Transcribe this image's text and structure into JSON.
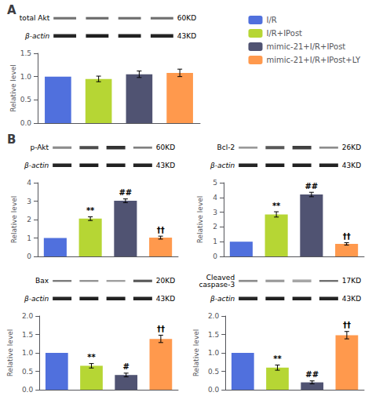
{
  "chart_data": [
    {
      "type": "bar",
      "title": "A",
      "ylabel": "Relative level",
      "categories": [
        null,
        null,
        null,
        null
      ],
      "series": [
        {
          "name": "I/R",
          "values": [
            1.0,
            null,
            null,
            null
          ],
          "errors": [
            0.0,
            null,
            null,
            null
          ]
        },
        {
          "name": "I/R+IPost",
          "values": [
            null,
            0.95,
            null,
            null
          ],
          "errors": [
            null,
            0.06,
            null,
            null
          ]
        },
        {
          "name": "mimic-21+I/R+IPost",
          "values": [
            null,
            null,
            1.05,
            null
          ],
          "errors": [
            null,
            null,
            0.07,
            null
          ]
        },
        {
          "name": "mimic-21+I/R+IPost+LY",
          "values": [
            null,
            null,
            null,
            1.08
          ],
          "errors": [
            null,
            null,
            null,
            0.08
          ]
        }
      ],
      "ylim": [
        0.0,
        1.5
      ],
      "yticks": [
        {
          "value": 0.0,
          "label": "0.0"
        },
        0.5,
        {
          "value": 1.0,
          "label": "1.0"
        },
        1.5
      ],
      "grid": false,
      "tick_labels": "y",
      "legend": "upper right",
      "blot": [
        {
          "label": "total Akt",
          "mass": "60KD",
          "darkness": [
            0.45,
            0.42,
            0.43,
            0.44
          ],
          "height": [
            0.07,
            0.07,
            0.07,
            0.07
          ]
        },
        {
          "label": "β-actin",
          "mass": "43KD",
          "darkness": [
            0.15,
            0.12,
            0.13,
            0.14
          ],
          "height": [
            0.1,
            0.1,
            0.1,
            0.1
          ]
        }
      ]
    },
    {
      "type": "bar",
      "title": "B",
      "ylabel": "Relative level",
      "categories": [
        null,
        null,
        null,
        null
      ],
      "series": [
        {
          "name": "I/R",
          "values": [
            1.0,
            null,
            null,
            null
          ],
          "errors": [
            0.0,
            null,
            null,
            null
          ]
        },
        {
          "name": "I/R+IPost",
          "values": [
            null,
            2.05,
            null,
            null
          ],
          "errors": [
            null,
            0.1,
            null,
            null
          ]
        },
        {
          "name": "mimic-21+I/R+IPost",
          "values": [
            null,
            null,
            3.02,
            null
          ],
          "errors": [
            null,
            null,
            0.1,
            null
          ]
        },
        {
          "name": "mimic-21+I/R+IPost+LY",
          "values": [
            null,
            null,
            null,
            1.02
          ],
          "errors": [
            null,
            null,
            null,
            0.08
          ]
        }
      ],
      "annotations": [
        null,
        "**",
        "##",
        "††"
      ],
      "ylim": [
        0.0,
        4.0
      ],
      "yticks": [
        0,
        1,
        2,
        3,
        4
      ],
      "grid": false,
      "tick_labels": "y",
      "blot": [
        {
          "label": "p-Akt",
          "mass": "60KD",
          "darkness": [
            0.55,
            0.3,
            0.2,
            0.5
          ],
          "height": [
            0.07,
            0.09,
            0.1,
            0.06
          ]
        },
        {
          "label": "β-actin",
          "mass": "43KD",
          "darkness": [
            0.15,
            0.12,
            0.13,
            0.14
          ],
          "height": [
            0.1,
            0.1,
            0.1,
            0.1
          ]
        }
      ]
    },
    {
      "type": "bar",
      "ylabel": "Relative level",
      "categories": [
        null,
        null,
        null,
        null
      ],
      "series": [
        {
          "name": "I/R",
          "values": [
            1.0,
            null,
            null,
            null
          ],
          "errors": [
            0.0,
            null,
            null,
            null
          ]
        },
        {
          "name": "I/R+IPost",
          "values": [
            null,
            2.85,
            null,
            null
          ],
          "errors": [
            null,
            0.18,
            null,
            null
          ]
        },
        {
          "name": "mimic-21+I/R+IPost",
          "values": [
            null,
            null,
            4.2,
            null
          ],
          "errors": [
            null,
            null,
            0.15,
            null
          ]
        },
        {
          "name": "mimic-21+I/R+IPost+LY",
          "values": [
            null,
            null,
            null,
            0.85
          ],
          "errors": [
            null,
            null,
            null,
            0.08
          ]
        }
      ],
      "annotations": [
        null,
        "**",
        "##",
        "††"
      ],
      "ylim": [
        0.0,
        5.0
      ],
      "yticks": [
        0,
        1,
        2,
        3,
        4,
        5
      ],
      "grid": false,
      "tick_labels": "y",
      "blot": [
        {
          "label": "Bcl-2",
          "mass": "26KD",
          "darkness": [
            0.6,
            0.35,
            0.25,
            0.55
          ],
          "height": [
            0.06,
            0.09,
            0.1,
            0.06
          ]
        },
        {
          "label": "β-actin",
          "mass": "43KD",
          "darkness": [
            0.15,
            0.12,
            0.13,
            0.14
          ],
          "height": [
            0.1,
            0.1,
            0.1,
            0.1
          ]
        }
      ]
    },
    {
      "type": "bar",
      "ylabel": "Relative level",
      "categories": [
        null,
        null,
        null,
        null
      ],
      "series": [
        {
          "name": "I/R",
          "values": [
            1.0,
            null,
            null,
            null
          ],
          "errors": [
            0.0,
            null,
            null,
            null
          ]
        },
        {
          "name": "I/R+IPost",
          "values": [
            null,
            0.65,
            null,
            null
          ],
          "errors": [
            null,
            0.06,
            null,
            null
          ]
        },
        {
          "name": "mimic-21+I/R+IPost",
          "values": [
            null,
            null,
            0.4,
            null
          ],
          "errors": [
            null,
            null,
            0.05,
            null
          ]
        },
        {
          "name": "mimic-21+I/R+IPost+LY",
          "values": [
            null,
            null,
            null,
            1.38
          ],
          "errors": [
            null,
            null,
            null,
            0.1
          ]
        }
      ],
      "annotations": [
        null,
        "**",
        "#",
        "††"
      ],
      "ylim": [
        0.0,
        2.0
      ],
      "yticks": [
        {
          "value": 0.0,
          "label": "0.0"
        },
        0.5,
        {
          "value": 1.0,
          "label": "1.0"
        },
        1.5,
        {
          "value": 2.0,
          "label": "2.0"
        }
      ],
      "grid": false,
      "tick_labels": "y",
      "blot": [
        {
          "label": "Bax",
          "mass": "20KD",
          "darkness": [
            0.45,
            0.55,
            0.6,
            0.35
          ],
          "height": [
            0.05,
            0.05,
            0.05,
            0.07
          ]
        },
        {
          "label": "β-actin",
          "mass": "43KD",
          "darkness": [
            0.15,
            0.12,
            0.13,
            0.14
          ],
          "height": [
            0.1,
            0.1,
            0.1,
            0.1
          ]
        }
      ]
    },
    {
      "type": "bar",
      "ylabel": "Relative level",
      "categories": [
        null,
        null,
        null,
        null
      ],
      "series": [
        {
          "name": "I/R",
          "values": [
            1.0,
            null,
            null,
            null
          ],
          "errors": [
            0.0,
            null,
            null,
            null
          ]
        },
        {
          "name": "I/R+IPost",
          "values": [
            null,
            0.6,
            null,
            null
          ],
          "errors": [
            null,
            0.07,
            null,
            null
          ]
        },
        {
          "name": "mimic-21+I/R+IPost",
          "values": [
            null,
            null,
            0.2,
            null
          ],
          "errors": [
            null,
            null,
            0.04,
            null
          ]
        },
        {
          "name": "mimic-21+I/R+IPost+LY",
          "values": [
            null,
            null,
            null,
            1.48
          ],
          "errors": [
            null,
            null,
            null,
            0.1
          ]
        }
      ],
      "annotations": [
        null,
        "**",
        "##",
        "††"
      ],
      "ylim": [
        0.0,
        2.0
      ],
      "yticks": [
        {
          "value": 0.0,
          "label": "0.0"
        },
        0.5,
        {
          "value": 1.0,
          "label": "1.0"
        },
        1.5,
        {
          "value": 2.0,
          "label": "2.0"
        }
      ],
      "grid": false,
      "tick_labels": "y",
      "blot": [
        {
          "label": "Cleaved\ncaspase-3",
          "mass": "17KD",
          "darkness": [
            0.55,
            0.6,
            0.65,
            0.4
          ],
          "height": [
            0.06,
            0.07,
            0.08,
            0.05
          ]
        },
        {
          "label": "β-actin",
          "mass": "43KD",
          "darkness": [
            0.15,
            0.12,
            0.13,
            0.14
          ],
          "height": [
            0.1,
            0.1,
            0.1,
            0.1
          ]
        }
      ]
    }
  ]
}
